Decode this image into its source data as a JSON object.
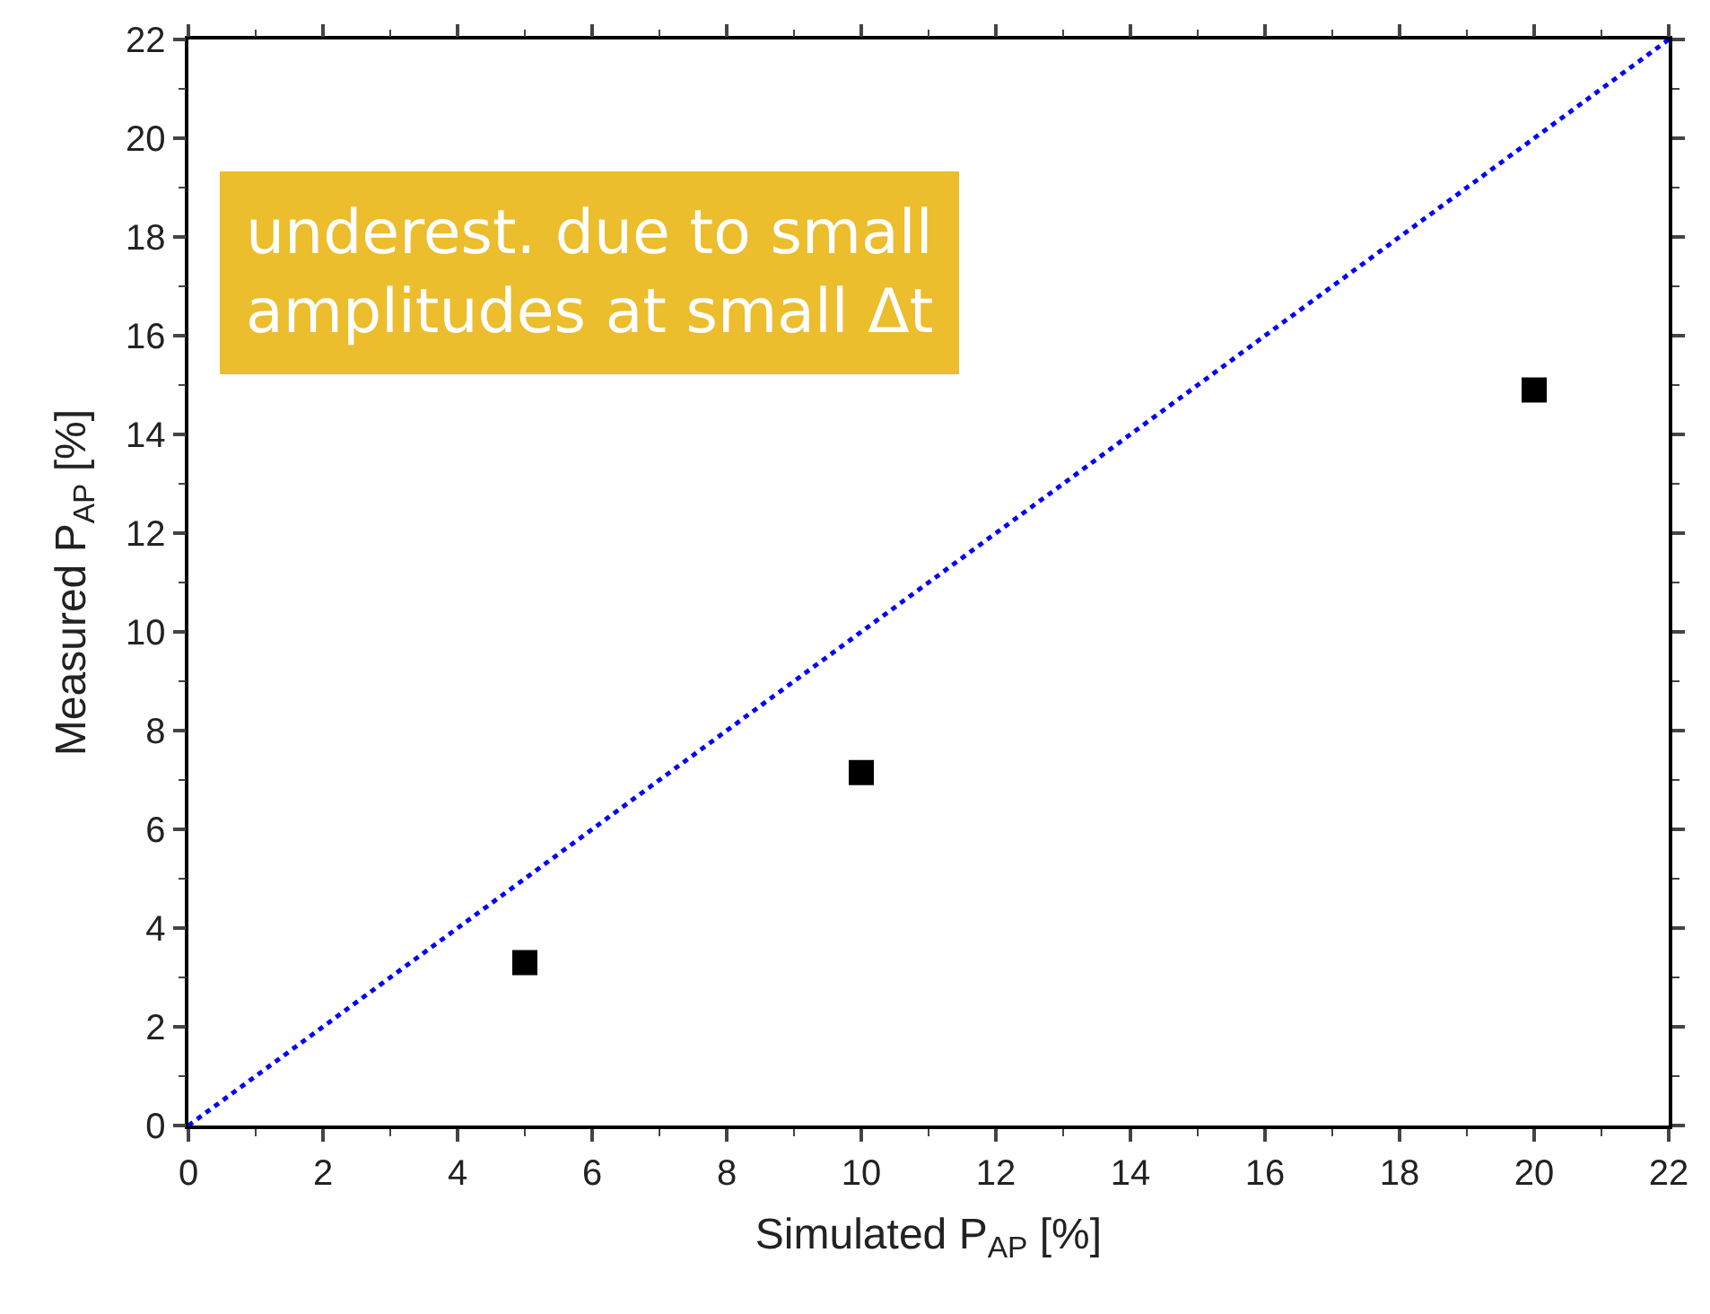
{
  "chart_data": {
    "type": "scatter",
    "xlabel": "Simulated P$_{AP}$ [%]",
    "ylabel": "Measured P$_{AP}$ [%]",
    "x": [
      5,
      10,
      20
    ],
    "series": [
      {
        "color": "#000000",
        "marker": "square",
        "values": [
          3.3,
          7.15,
          14.9
        ]
      },
      {
        "type": "line",
        "color": "#0000ff",
        "line_style": "dotted",
        "marker": "none",
        "x": [
          0,
          22
        ],
        "values": [
          0,
          22
        ]
      }
    ],
    "xlim": [
      0,
      22
    ],
    "ylim": [
      0,
      22
    ],
    "xticks": [
      0,
      2,
      4,
      6,
      8,
      10,
      12,
      14,
      16,
      18,
      20,
      22
    ],
    "yticks": [
      0,
      2,
      4,
      6,
      8,
      10,
      12,
      14,
      16,
      18,
      20,
      22
    ],
    "annotations": [
      "underest. due to small\namplitudes at small Δt"
    ]
  }
}
